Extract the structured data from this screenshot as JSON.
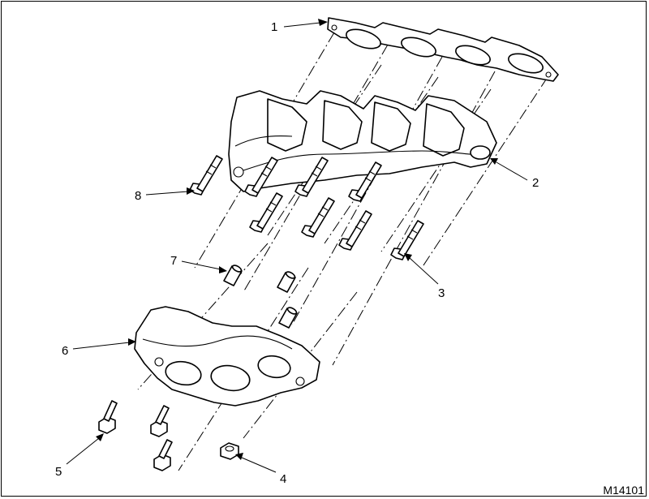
{
  "figure_id": "M14101",
  "callouts": [
    {
      "id": "c1",
      "label": "1"
    },
    {
      "id": "c2",
      "label": "2"
    },
    {
      "id": "c3",
      "label": "3"
    },
    {
      "id": "c4",
      "label": "4"
    },
    {
      "id": "c5",
      "label": "5"
    },
    {
      "id": "c6",
      "label": "6"
    },
    {
      "id": "c7",
      "label": "7"
    },
    {
      "id": "c8",
      "label": "8"
    }
  ],
  "colors": {
    "line": "#000000",
    "background": "#ffffff",
    "shade": "#cfcfcf"
  }
}
